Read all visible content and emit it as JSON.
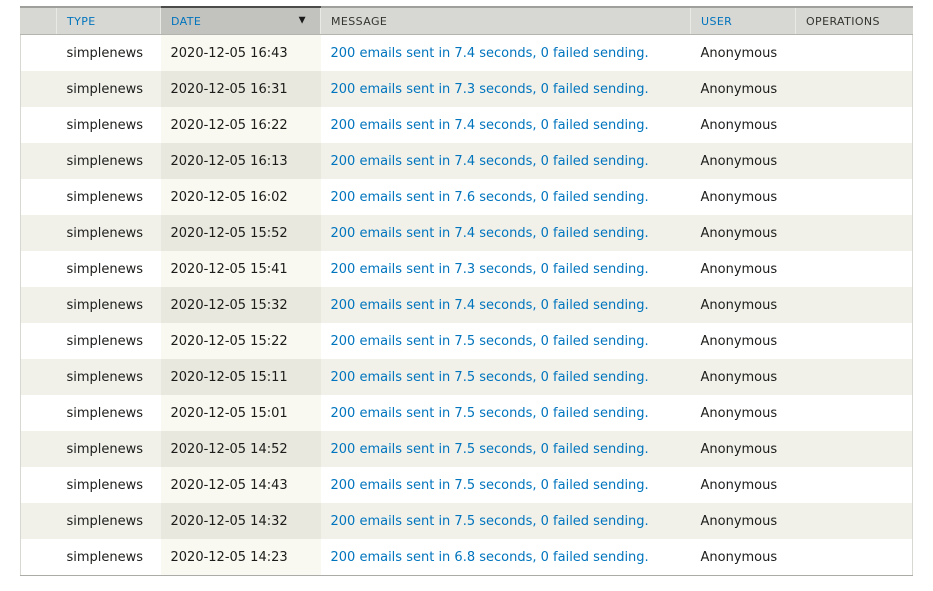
{
  "colors": {
    "link_blue": "#0074bd",
    "header_bg": "#d7d7d3",
    "header_active_bg": "#c2c2be",
    "header_text": "#333330",
    "header_top_border": "#9f9f9b",
    "header_active_top_border": "#4c4c4a",
    "header_bottom_border": "#b4b4af",
    "table_side_border": "#d8d8d3",
    "table_bottom_border": "#ababa7",
    "row_odd": "#ffffff",
    "row_even": "#f1f1ea",
    "row_odd_active": "#f9f9f1",
    "row_even_active": "#e8e8df"
  },
  "icons": {
    "sort_desc_icon": "▼"
  },
  "table": {
    "columns": {
      "icon": {
        "label": ""
      },
      "type": {
        "label": "TYPE",
        "sortable": true
      },
      "date": {
        "label": "DATE",
        "sortable": true,
        "active": true,
        "sort": "desc"
      },
      "message": {
        "label": "MESSAGE",
        "sortable": false
      },
      "user": {
        "label": "USER",
        "sortable": true
      },
      "operations": {
        "label": "OPERATIONS",
        "sortable": false
      }
    },
    "rows": [
      {
        "type": "simplenews",
        "date": "2020-12-05 16:43",
        "message": "200 emails sent in 7.4 seconds, 0 failed sending.",
        "user": "Anonymous",
        "operations": ""
      },
      {
        "type": "simplenews",
        "date": "2020-12-05 16:31",
        "message": "200 emails sent in 7.3 seconds, 0 failed sending.",
        "user": "Anonymous",
        "operations": ""
      },
      {
        "type": "simplenews",
        "date": "2020-12-05 16:22",
        "message": "200 emails sent in 7.4 seconds, 0 failed sending.",
        "user": "Anonymous",
        "operations": ""
      },
      {
        "type": "simplenews",
        "date": "2020-12-05 16:13",
        "message": "200 emails sent in 7.4 seconds, 0 failed sending.",
        "user": "Anonymous",
        "operations": ""
      },
      {
        "type": "simplenews",
        "date": "2020-12-05 16:02",
        "message": "200 emails sent in 7.6 seconds, 0 failed sending.",
        "user": "Anonymous",
        "operations": ""
      },
      {
        "type": "simplenews",
        "date": "2020-12-05 15:52",
        "message": "200 emails sent in 7.4 seconds, 0 failed sending.",
        "user": "Anonymous",
        "operations": ""
      },
      {
        "type": "simplenews",
        "date": "2020-12-05 15:41",
        "message": "200 emails sent in 7.3 seconds, 0 failed sending.",
        "user": "Anonymous",
        "operations": ""
      },
      {
        "type": "simplenews",
        "date": "2020-12-05 15:32",
        "message": "200 emails sent in 7.4 seconds, 0 failed sending.",
        "user": "Anonymous",
        "operations": ""
      },
      {
        "type": "simplenews",
        "date": "2020-12-05 15:22",
        "message": "200 emails sent in 7.5 seconds, 0 failed sending.",
        "user": "Anonymous",
        "operations": ""
      },
      {
        "type": "simplenews",
        "date": "2020-12-05 15:11",
        "message": "200 emails sent in 7.5 seconds, 0 failed sending.",
        "user": "Anonymous",
        "operations": ""
      },
      {
        "type": "simplenews",
        "date": "2020-12-05 15:01",
        "message": "200 emails sent in 7.5 seconds, 0 failed sending.",
        "user": "Anonymous",
        "operations": ""
      },
      {
        "type": "simplenews",
        "date": "2020-12-05 14:52",
        "message": "200 emails sent in 7.5 seconds, 0 failed sending.",
        "user": "Anonymous",
        "operations": ""
      },
      {
        "type": "simplenews",
        "date": "2020-12-05 14:43",
        "message": "200 emails sent in 7.5 seconds, 0 failed sending.",
        "user": "Anonymous",
        "operations": ""
      },
      {
        "type": "simplenews",
        "date": "2020-12-05 14:32",
        "message": "200 emails sent in 7.5 seconds, 0 failed sending.",
        "user": "Anonymous",
        "operations": ""
      },
      {
        "type": "simplenews",
        "date": "2020-12-05 14:23",
        "message": "200 emails sent in 6.8 seconds, 0 failed sending.",
        "user": "Anonymous",
        "operations": ""
      }
    ]
  }
}
